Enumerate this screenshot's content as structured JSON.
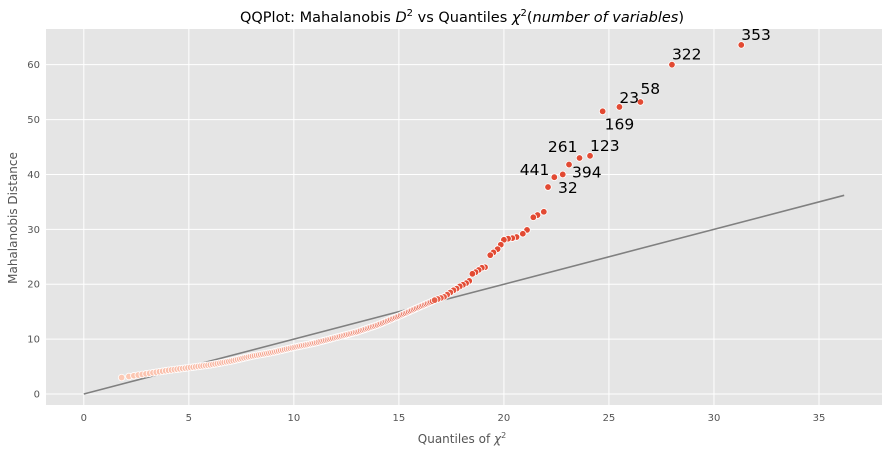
{
  "chart_data": {
    "type": "scatter",
    "title": {
      "prefix": "QQPlot: Mahalanobis ",
      "d_symbol": "D",
      "d_exp": "2",
      "middle": " vs Quantiles ",
      "chi_symbol": "χ",
      "chi_exp": "2",
      "paren_open": "(",
      "italic_text": "number of variables",
      "paren_close": ")"
    },
    "xlabel": {
      "text": "Quantiles of ",
      "chi_symbol": "χ",
      "chi_exp": "2"
    },
    "ylabel": "Mahalanobis Distance",
    "xlim": [
      -1.8,
      38.0
    ],
    "ylim": [
      -2.0,
      66.5
    ],
    "xticks": [
      0,
      5,
      10,
      15,
      20,
      25,
      30,
      35
    ],
    "yticks": [
      0,
      10,
      20,
      30,
      40,
      50,
      60
    ],
    "grid": true,
    "reference_line": {
      "x": [
        0,
        36.2
      ],
      "y": [
        0,
        36.2
      ],
      "color": "#808080"
    },
    "colors": {
      "background": "#e5e5e5",
      "grid": "#ffffff",
      "low": "#fcc9b5",
      "high": "#e24a33"
    },
    "outliers": [
      {
        "x": 31.3,
        "y": 63.6,
        "label": "353"
      },
      {
        "x": 28.0,
        "y": 60.0,
        "label": "322"
      },
      {
        "x": 26.5,
        "y": 53.2,
        "label": "58"
      },
      {
        "x": 25.5,
        "y": 52.3,
        "label": "23"
      },
      {
        "x": 24.7,
        "y": 51.5,
        "label": "169"
      },
      {
        "x": 24.1,
        "y": 43.4,
        "label": "123"
      },
      {
        "x": 23.6,
        "y": 43.0,
        "label": "261"
      },
      {
        "x": 23.1,
        "y": 41.8,
        "label": "394"
      },
      {
        "x": 22.4,
        "y": 39.5,
        "label": "441"
      },
      {
        "x": 22.8,
        "y": 40.0,
        "label": ""
      },
      {
        "x": 22.1,
        "y": 37.7,
        "label": "32"
      }
    ],
    "upper_points": [
      [
        21.9,
        33.2
      ],
      [
        21.6,
        32.6
      ],
      [
        21.4,
        32.2
      ],
      [
        21.1,
        29.9
      ],
      [
        20.9,
        29.2
      ],
      [
        20.6,
        28.6
      ],
      [
        20.4,
        28.4
      ],
      [
        20.2,
        28.3
      ],
      [
        20.0,
        28.1
      ],
      [
        19.85,
        27.2
      ],
      [
        19.7,
        26.4
      ],
      [
        19.5,
        25.8
      ],
      [
        19.35,
        25.3
      ],
      [
        19.1,
        23.1
      ],
      [
        18.95,
        23.0
      ],
      [
        18.8,
        22.6
      ],
      [
        18.65,
        22.2
      ],
      [
        18.5,
        21.9
      ],
      [
        18.35,
        20.6
      ],
      [
        18.2,
        20.2
      ],
      [
        18.05,
        19.9
      ],
      [
        17.9,
        19.6
      ],
      [
        17.75,
        19.2
      ],
      [
        17.6,
        18.9
      ],
      [
        17.45,
        18.5
      ],
      [
        17.3,
        18.1
      ],
      [
        17.15,
        17.7
      ],
      [
        17.0,
        17.5
      ],
      [
        16.85,
        17.3
      ],
      [
        16.7,
        17.1
      ]
    ],
    "lower_curve": {
      "x_start": 1.8,
      "x_end": 16.6,
      "count": 150,
      "anchors": [
        [
          1.8,
          3.0
        ],
        [
          2.5,
          3.4
        ],
        [
          3.0,
          3.7
        ],
        [
          4.0,
          4.3
        ],
        [
          5.0,
          4.8
        ],
        [
          6.0,
          5.3
        ],
        [
          7.0,
          6.0
        ],
        [
          8.0,
          6.9
        ],
        [
          9.0,
          7.6
        ],
        [
          10.0,
          8.5
        ],
        [
          11.0,
          9.3
        ],
        [
          12.0,
          10.3
        ],
        [
          13.0,
          11.3
        ],
        [
          14.0,
          12.6
        ],
        [
          15.0,
          14.2
        ],
        [
          16.0,
          15.9
        ],
        [
          16.6,
          16.9
        ]
      ]
    }
  }
}
